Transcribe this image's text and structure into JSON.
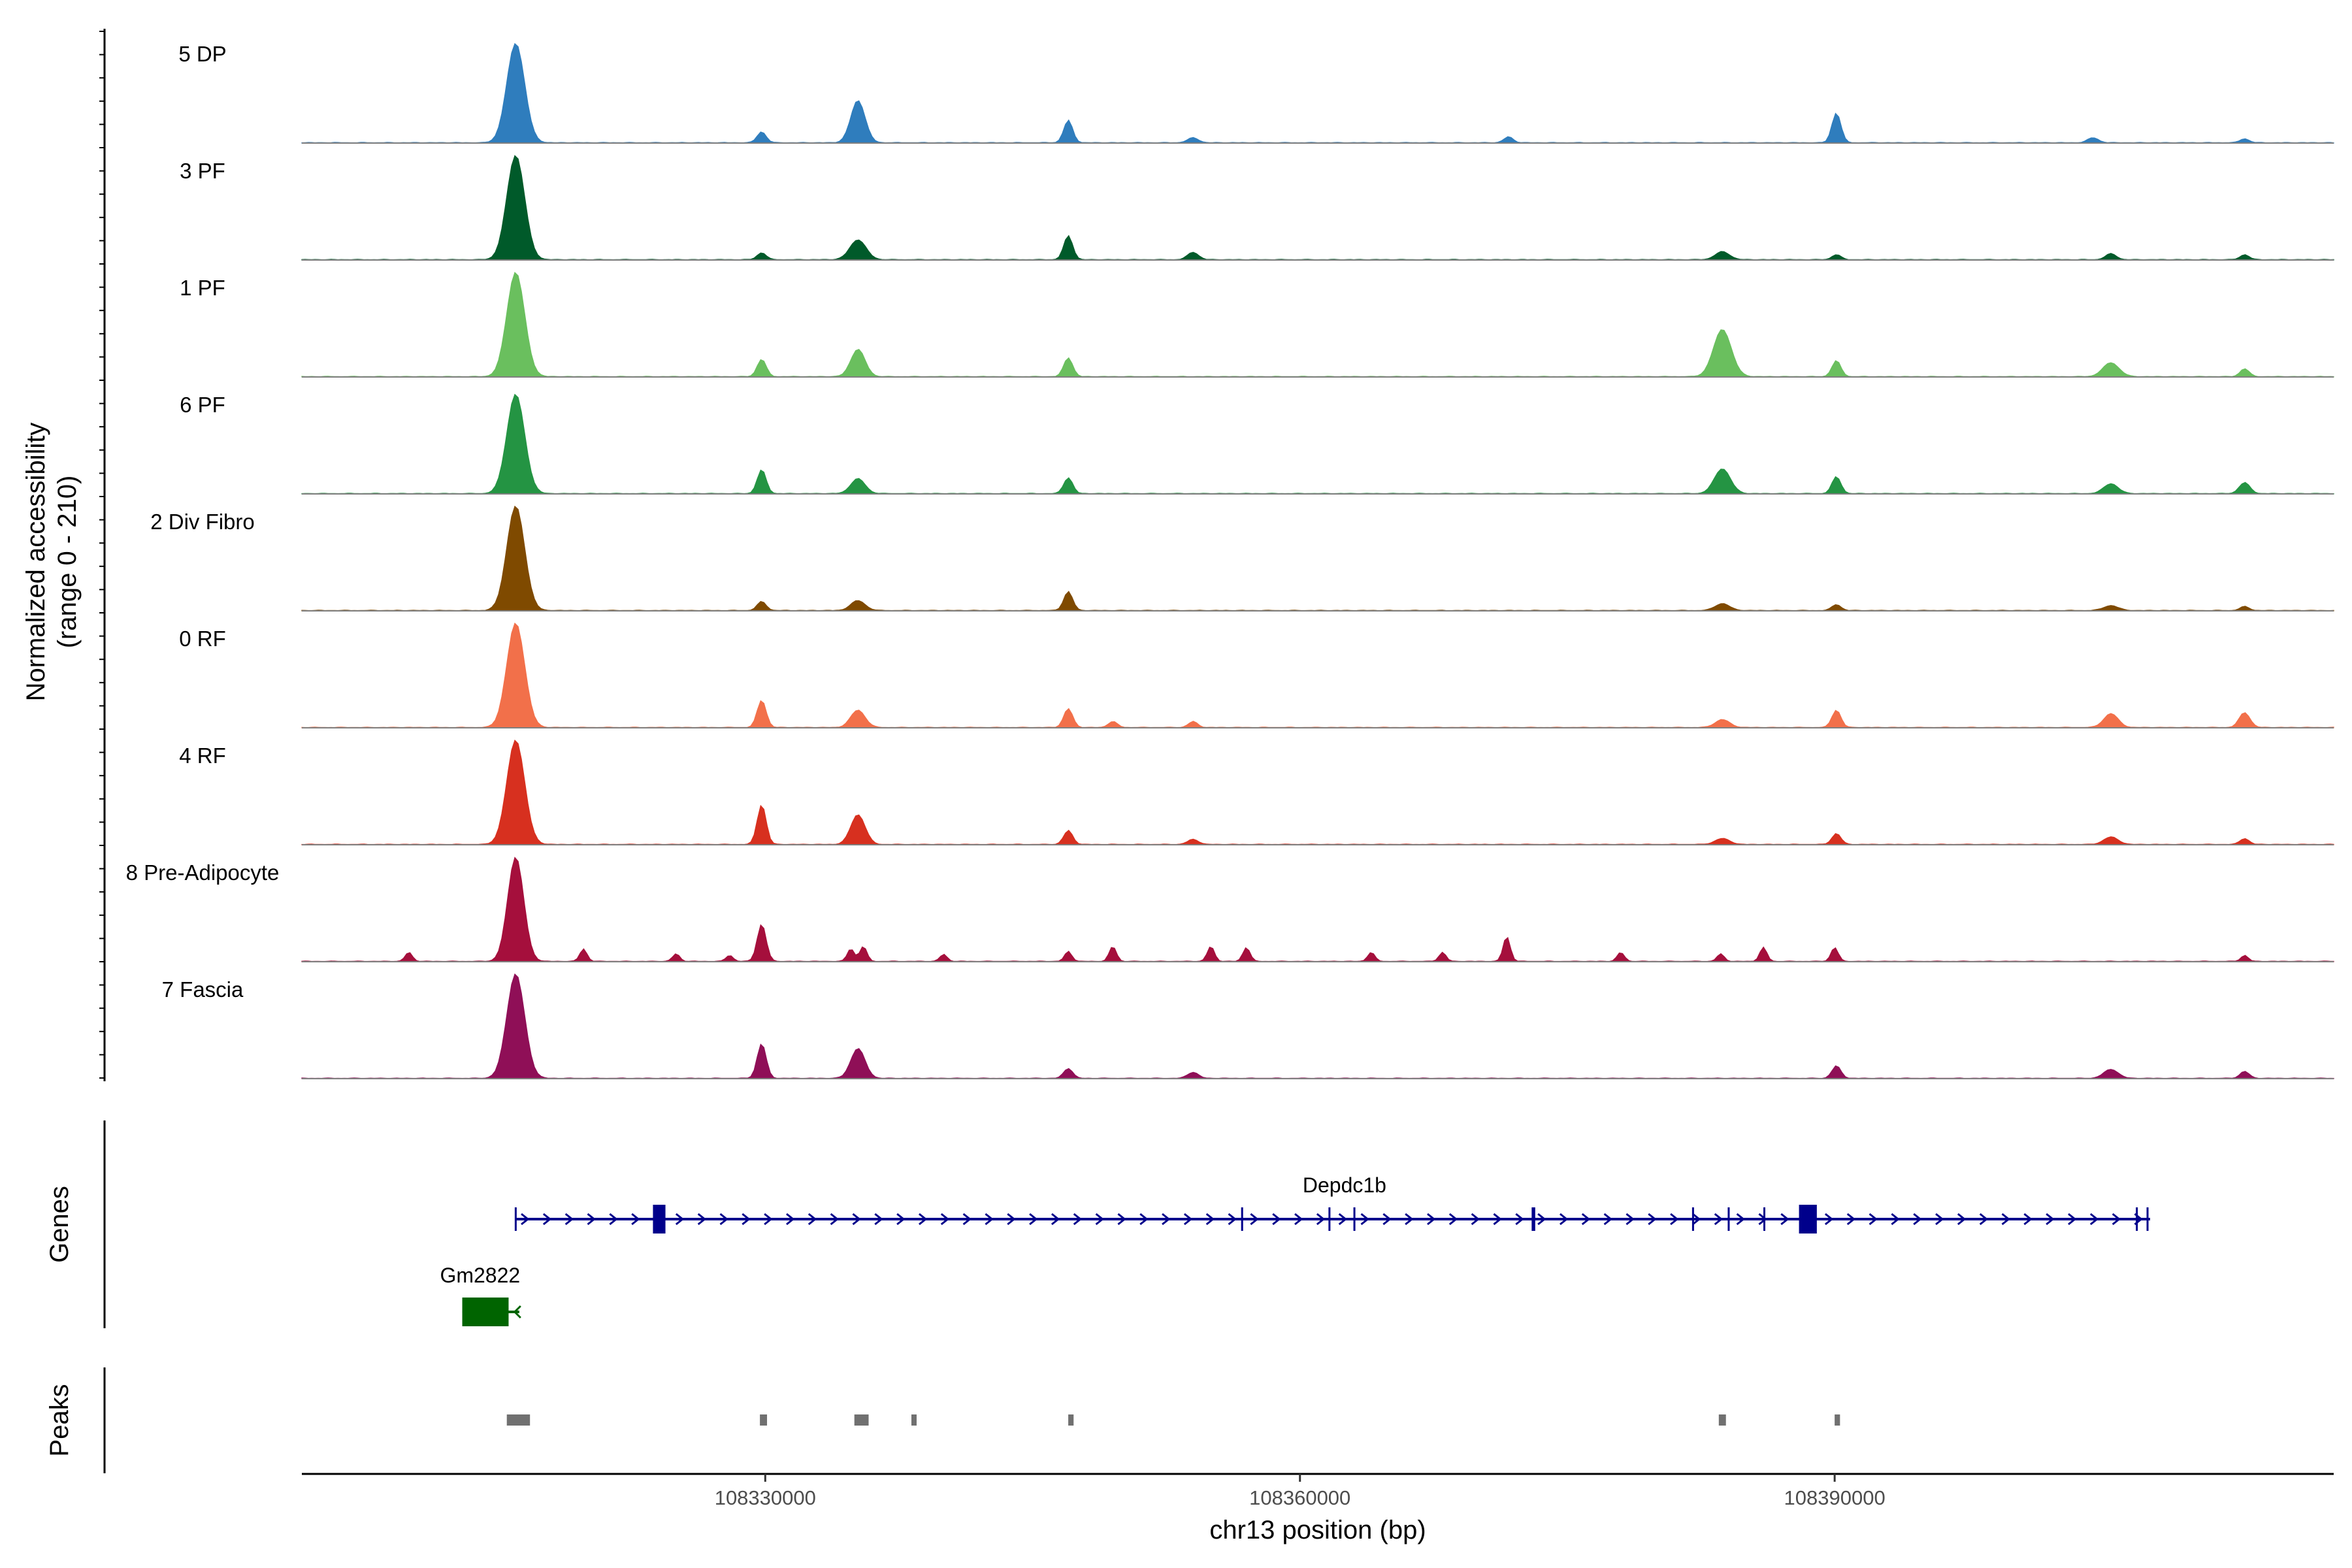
{
  "chart_data": {
    "type": "coverage",
    "title": "",
    "chromosome": "chr13",
    "xlabel": "chr13 position (bp)",
    "xlim": [
      108304000,
      108418000
    ],
    "xticks": [
      108330000,
      108360000,
      108390000
    ],
    "xtick_labels": [
      "108330000",
      "108360000",
      "108390000"
    ],
    "ylabel_line1": "Normalized accessibility",
    "ylabel_line2": "(range 0 - 210)",
    "ylim": [
      0,
      210
    ],
    "panel_titles": {
      "genes": "Genes",
      "peaks": "Peaks"
    },
    "tracks": [
      {
        "name": "5 DP",
        "color": "#2f7dbd",
        "peaks": [
          [
            108316000,
            200,
            500
          ],
          [
            108329800,
            22,
            250
          ],
          [
            108335200,
            85,
            400
          ],
          [
            108347000,
            45,
            250
          ],
          [
            108354000,
            10,
            300
          ],
          [
            108371700,
            12,
            250
          ],
          [
            108390100,
            60,
            250
          ],
          [
            108404500,
            10,
            300
          ],
          [
            108413000,
            8,
            250
          ]
        ]
      },
      {
        "name": "3 PF",
        "color": "#005a2a",
        "peaks": [
          [
            108316000,
            210,
            500
          ],
          [
            108329800,
            14,
            250
          ],
          [
            108335200,
            40,
            450
          ],
          [
            108347000,
            48,
            250
          ],
          [
            108354000,
            15,
            300
          ],
          [
            108383700,
            16,
            400
          ],
          [
            108390100,
            10,
            250
          ],
          [
            108405500,
            12,
            300
          ],
          [
            108413000,
            10,
            250
          ]
        ]
      },
      {
        "name": "1 PF",
        "color": "#6abf5e",
        "peaks": [
          [
            108316000,
            210,
            500
          ],
          [
            108329800,
            35,
            250
          ],
          [
            108335200,
            55,
            400
          ],
          [
            108347000,
            38,
            250
          ],
          [
            108383700,
            95,
            500
          ],
          [
            108390100,
            32,
            250
          ],
          [
            108405500,
            28,
            450
          ],
          [
            108413000,
            16,
            250
          ]
        ]
      },
      {
        "name": "6 PF",
        "color": "#249443",
        "peaks": [
          [
            108316000,
            200,
            500
          ],
          [
            108329800,
            48,
            250
          ],
          [
            108335200,
            30,
            400
          ],
          [
            108347000,
            32,
            250
          ],
          [
            108383700,
            50,
            450
          ],
          [
            108390100,
            34,
            250
          ],
          [
            108405500,
            20,
            400
          ],
          [
            108413000,
            22,
            300
          ]
        ]
      },
      {
        "name": "2 Div Fibro",
        "color": "#7f4a00",
        "peaks": [
          [
            108316000,
            210,
            500
          ],
          [
            108329800,
            18,
            250
          ],
          [
            108335200,
            20,
            400
          ],
          [
            108347000,
            38,
            250
          ],
          [
            108383700,
            14,
            400
          ],
          [
            108390100,
            12,
            250
          ],
          [
            108405500,
            10,
            400
          ],
          [
            108413000,
            8,
            250
          ]
        ]
      },
      {
        "name": "0 RF",
        "color": "#f2704a",
        "peaks": [
          [
            108316000,
            210,
            500
          ],
          [
            108329800,
            55,
            250
          ],
          [
            108335200,
            35,
            400
          ],
          [
            108347000,
            38,
            250
          ],
          [
            108349500,
            12,
            250
          ],
          [
            108354000,
            12,
            250
          ],
          [
            108383700,
            16,
            400
          ],
          [
            108390100,
            35,
            250
          ],
          [
            108405500,
            28,
            400
          ],
          [
            108413000,
            30,
            300
          ]
        ]
      },
      {
        "name": "4 RF",
        "color": "#d7301f",
        "peaks": [
          [
            108316000,
            210,
            500
          ],
          [
            108329800,
            80,
            250
          ],
          [
            108335200,
            60,
            400
          ],
          [
            108347000,
            28,
            250
          ],
          [
            108354000,
            10,
            300
          ],
          [
            108383700,
            12,
            400
          ],
          [
            108390100,
            22,
            250
          ],
          [
            108405500,
            15,
            400
          ],
          [
            108413000,
            12,
            250
          ]
        ]
      },
      {
        "name": "8 Pre-Adipocyte",
        "color": "#a50f3c",
        "peaks": [
          [
            108310000,
            18,
            200
          ],
          [
            108316000,
            210,
            450
          ],
          [
            108319800,
            25,
            200
          ],
          [
            108325000,
            15,
            200
          ],
          [
            108328000,
            12,
            200
          ],
          [
            108329800,
            75,
            250
          ],
          [
            108334800,
            25,
            200
          ],
          [
            108335500,
            30,
            200
          ],
          [
            108340000,
            14,
            200
          ],
          [
            108347000,
            20,
            200
          ],
          [
            108349500,
            30,
            200
          ],
          [
            108355000,
            30,
            200
          ],
          [
            108357000,
            28,
            200
          ],
          [
            108364000,
            18,
            200
          ],
          [
            108368000,
            18,
            200
          ],
          [
            108371600,
            50,
            200
          ],
          [
            108378000,
            18,
            200
          ],
          [
            108383600,
            15,
            200
          ],
          [
            108386000,
            28,
            200
          ],
          [
            108390000,
            28,
            200
          ],
          [
            108413000,
            12,
            200
          ]
        ]
      },
      {
        "name": "7 Fascia",
        "color": "#8f0f57",
        "peaks": [
          [
            108316000,
            210,
            500
          ],
          [
            108329800,
            70,
            250
          ],
          [
            108335200,
            60,
            400
          ],
          [
            108347000,
            20,
            250
          ],
          [
            108354000,
            12,
            300
          ],
          [
            108390100,
            25,
            250
          ],
          [
            108405500,
            18,
            400
          ],
          [
            108413000,
            14,
            250
          ]
        ]
      }
    ],
    "genes": [
      {
        "name": "Depdc1b",
        "start": 108316000,
        "end": 108407700,
        "strand": "+",
        "color": "#00008b",
        "exons": [
          [
            108323700,
            108324400
          ],
          [
            108356700,
            108356800
          ],
          [
            108361600,
            108361700
          ],
          [
            108363000,
            108363100
          ],
          [
            108373000,
            108373200
          ],
          [
            108382000,
            108382100
          ],
          [
            108384000,
            108384100
          ],
          [
            108386000,
            108386100
          ],
          [
            108388000,
            108389000
          ],
          [
            108406900,
            108407000
          ],
          [
            108407500,
            108407600
          ]
        ]
      },
      {
        "name": "Gm2822",
        "start": 108313000,
        "end": 108316200,
        "strand": "-",
        "color": "#006400",
        "exons": [
          [
            108313000,
            108315600
          ]
        ]
      }
    ],
    "peaks_track": [
      [
        108315500,
        108316800
      ],
      [
        108329700,
        108330100
      ],
      [
        108335000,
        108335800
      ],
      [
        108338200,
        108338400
      ],
      [
        108347000,
        108347300
      ],
      [
        108383500,
        108383900
      ],
      [
        108390000,
        108390300
      ]
    ]
  }
}
